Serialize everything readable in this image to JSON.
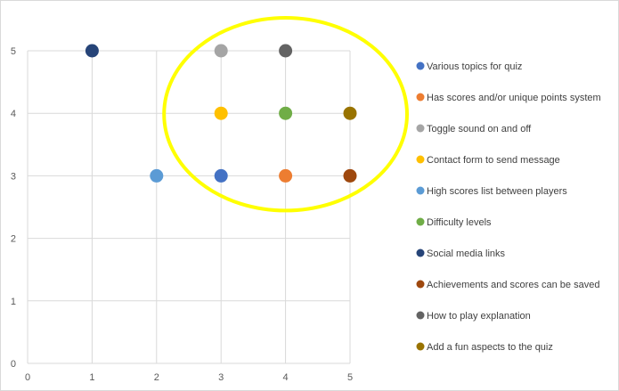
{
  "chart_data": {
    "type": "scatter",
    "title": "",
    "xlabel": "",
    "ylabel": "",
    "xlim": [
      0,
      5
    ],
    "ylim": [
      0,
      5
    ],
    "x_ticks": [
      "0",
      "1",
      "2",
      "3",
      "4",
      "5"
    ],
    "y_ticks": [
      "0",
      "1",
      "2",
      "3",
      "4",
      "5"
    ],
    "grid": true,
    "legend_position": "right",
    "series": [
      {
        "name": "Various topics for quiz",
        "x": 3,
        "y": 3,
        "color": "#4472C4"
      },
      {
        "name": "Has scores and/or unique points system",
        "x": 4,
        "y": 3,
        "color": "#ED7D31"
      },
      {
        "name": "Toggle sound on and off",
        "x": 3,
        "y": 5,
        "color": "#A5A5A5"
      },
      {
        "name": "Contact form to send message",
        "x": 3,
        "y": 4,
        "color": "#FFC000"
      },
      {
        "name": "High scores list between players",
        "x": 2,
        "y": 3,
        "color": "#5B9BD5"
      },
      {
        "name": "Difficulty  levels",
        "x": 4,
        "y": 4,
        "color": "#70AD47"
      },
      {
        "name": "Social media links",
        "x": 1,
        "y": 5,
        "color": "#264478"
      },
      {
        "name": "Achievements and scores can be saved",
        "x": 5,
        "y": 3,
        "color": "#9E480E"
      },
      {
        "name": "How to play explanation",
        "x": 4,
        "y": 5,
        "color": "#636363"
      },
      {
        "name": "Add a fun aspects to the quiz",
        "x": 5,
        "y": 4,
        "color": "#997300"
      }
    ],
    "annotations": [
      {
        "type": "ellipse-highlight",
        "color": "#FFFF00",
        "encloses_x": [
          3,
          5
        ],
        "encloses_y": [
          3,
          5
        ]
      }
    ]
  }
}
